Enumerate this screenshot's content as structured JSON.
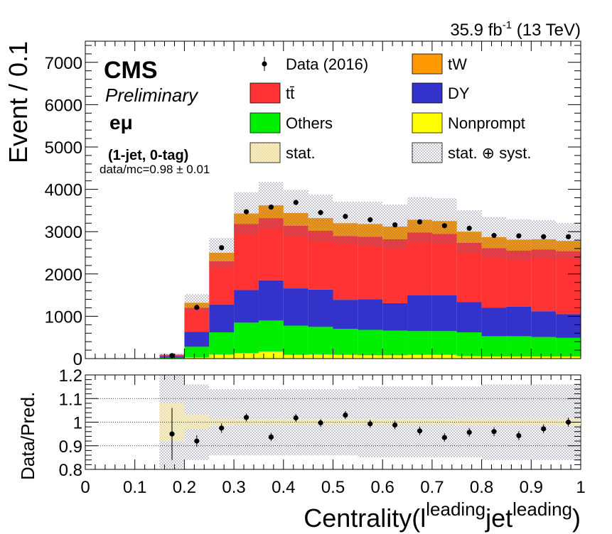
{
  "header": {
    "lumi": "35.9 fb",
    "lumi_exp": "-1",
    "energy": " (13 TeV)"
  },
  "labels": {
    "cms": "CMS",
    "preliminary": "Preliminary",
    "channel": "eμ",
    "category": "(1-jet, 0-tag)",
    "ratio_text": "data/mc=0.98 ± 0.01"
  },
  "legend": [
    {
      "label": "Data (2016)",
      "type": "marker",
      "color": "#000000"
    },
    {
      "label": "tW",
      "type": "box",
      "color": "#ff9900"
    },
    {
      "label": "tt̄",
      "type": "box",
      "color": "#ff3333"
    },
    {
      "label": "DY",
      "type": "box",
      "color": "#3333cc"
    },
    {
      "label": "Others",
      "type": "box",
      "color": "#00ee00"
    },
    {
      "label": "Nonprompt",
      "type": "box",
      "color": "#ffff00"
    },
    {
      "label": "stat.",
      "type": "hatch",
      "color": "#e8d98a"
    },
    {
      "label": "stat. ⊕ syst.",
      "type": "hatch",
      "color": "#8888aa"
    }
  ],
  "chart_data": [
    {
      "type": "bar",
      "stacked": true,
      "ylabel": "Event / 0.1",
      "xlim": [
        0,
        1
      ],
      "ylim": [
        0,
        7500
      ],
      "y_ticks": [
        0,
        1000,
        2000,
        3000,
        4000,
        5000,
        6000,
        7000
      ],
      "bin_edges": [
        0.15,
        0.2,
        0.25,
        0.3,
        0.35,
        0.4,
        0.45,
        0.5,
        0.55,
        0.6,
        0.65,
        0.7,
        0.75,
        0.8,
        0.85,
        0.9,
        0.95,
        1.0
      ],
      "series": [
        {
          "name": "Nonprompt",
          "color": "#ffff00",
          "values": [
            5,
            30,
            100,
            130,
            170,
            90,
            100,
            90,
            80,
            80,
            90,
            90,
            60,
            50,
            50,
            50,
            50
          ]
        },
        {
          "name": "Others",
          "color": "#00ee00",
          "values": [
            15,
            250,
            520,
            720,
            730,
            690,
            650,
            610,
            600,
            580,
            560,
            560,
            560,
            480,
            480,
            460,
            440
          ]
        },
        {
          "name": "DY",
          "color": "#3333cc",
          "values": [
            30,
            350,
            660,
            770,
            950,
            880,
            880,
            690,
            720,
            650,
            850,
            850,
            720,
            670,
            700,
            610,
            560
          ]
        },
        {
          "name": "tt̄",
          "color": "#ff3333",
          "values": [
            40,
            570,
            1020,
            1560,
            1470,
            1480,
            1390,
            1510,
            1480,
            1510,
            1480,
            1450,
            1400,
            1410,
            1320,
            1460,
            1490
          ]
        },
        {
          "name": "tW",
          "color": "#ff9900",
          "values": [
            10,
            120,
            200,
            250,
            300,
            300,
            300,
            300,
            300,
            300,
            300,
            300,
            260,
            260,
            260,
            240,
            240
          ]
        }
      ],
      "syst_band_halfwidth": [
        30,
        200,
        350,
        500,
        550,
        550,
        550,
        500,
        520,
        520,
        540,
        540,
        500,
        480,
        480,
        450,
        420
      ],
      "data": {
        "name": "Data (2016)",
        "x": [
          0.175,
          0.225,
          0.275,
          0.325,
          0.375,
          0.425,
          0.475,
          0.525,
          0.575,
          0.625,
          0.675,
          0.725,
          0.775,
          0.825,
          0.875,
          0.925,
          0.975
        ],
        "y": [
          70,
          1210,
          2620,
          3470,
          3580,
          3690,
          3450,
          3360,
          3280,
          3160,
          3230,
          3140,
          3080,
          2910,
          2900,
          2880,
          2880
        ]
      }
    },
    {
      "type": "scatter",
      "ylabel": "Data/Pred.",
      "xlabel": "Centrality(l",
      "xlabel_sup1": "leading",
      "xlabel_mid": "jet",
      "xlabel_sup2": "leading",
      "xlabel_end": ")",
      "xlim": [
        0,
        1
      ],
      "ylim": [
        0.8,
        1.2
      ],
      "y_ticks": [
        0.8,
        0.9,
        1.0,
        1.1,
        1.2
      ],
      "y_tick_labels": [
        "0.8",
        "0.9",
        "1",
        "1.1",
        "1.2"
      ],
      "x_ticks": [
        0,
        0.1,
        0.2,
        0.3,
        0.4,
        0.5,
        0.6,
        0.7,
        0.8,
        0.9,
        1.0
      ],
      "x_tick_labels": [
        "0",
        "0.1",
        "0.2",
        "0.3",
        "0.4",
        "0.5",
        "0.6",
        "0.7",
        "0.8",
        "0.9",
        "1"
      ],
      "x": [
        0.175,
        0.225,
        0.275,
        0.325,
        0.375,
        0.425,
        0.475,
        0.525,
        0.575,
        0.625,
        0.675,
        0.725,
        0.775,
        0.825,
        0.875,
        0.925,
        0.975
      ],
      "y": [
        0.95,
        0.92,
        0.975,
        1.02,
        0.937,
        1.018,
        0.997,
        1.03,
        0.993,
        0.988,
        0.963,
        0.935,
        0.957,
        0.96,
        0.943,
        0.972,
        1.0
      ],
      "yerr": [
        0.11,
        0.025,
        0.02,
        0.017,
        0.017,
        0.017,
        0.017,
        0.017,
        0.017,
        0.018,
        0.018,
        0.018,
        0.018,
        0.019,
        0.019,
        0.019,
        0.019
      ],
      "stat_band_halfwidth": [
        0.08,
        0.03,
        0.015,
        0.012,
        0.012,
        0.012,
        0.012,
        0.012,
        0.012,
        0.012,
        0.012,
        0.012,
        0.013,
        0.013,
        0.013,
        0.013,
        0.014
      ],
      "syst_band_halfwidth": [
        0.2,
        0.16,
        0.14,
        0.14,
        0.14,
        0.14,
        0.14,
        0.14,
        0.15,
        0.15,
        0.15,
        0.15,
        0.15,
        0.16,
        0.16,
        0.16,
        0.16
      ]
    }
  ]
}
